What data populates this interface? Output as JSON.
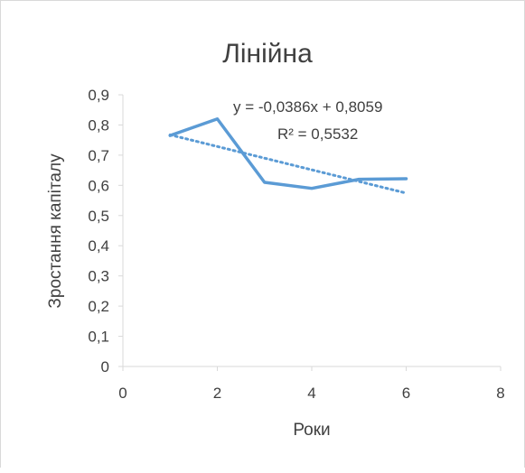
{
  "chart_data": {
    "type": "line",
    "title": "Лінійна",
    "xlabel": "Роки",
    "ylabel": "Зростання капіталу",
    "xlim": [
      0,
      8
    ],
    "ylim": [
      0,
      0.9
    ],
    "x_ticks": [
      0,
      2,
      4,
      6,
      8
    ],
    "x_tick_labels": [
      "0",
      "2",
      "4",
      "6",
      "8"
    ],
    "y_ticks": [
      0,
      0.1,
      0.2,
      0.3,
      0.4,
      0.5,
      0.6,
      0.7,
      0.8,
      0.9
    ],
    "y_tick_labels": [
      "0",
      "0,1",
      "0,2",
      "0,3",
      "0,4",
      "0,5",
      "0,6",
      "0,7",
      "0,8",
      "0,9"
    ],
    "grid": false,
    "legend": "none",
    "series": [
      {
        "x": [
          1,
          2,
          3,
          4,
          5,
          6
        ],
        "values": [
          0.765,
          0.82,
          0.61,
          0.59,
          0.62,
          0.622
        ],
        "color": "#5b9bd5"
      }
    ],
    "trendline": {
      "type": "linear",
      "slope": -0.0386,
      "intercept": 0.8059,
      "x_range": [
        1,
        6
      ],
      "style": "dotted",
      "color": "#5b9bd5",
      "equation_label": "y = -0,0386x + 0,8059",
      "r2_label": "R² = 0,5532"
    }
  }
}
